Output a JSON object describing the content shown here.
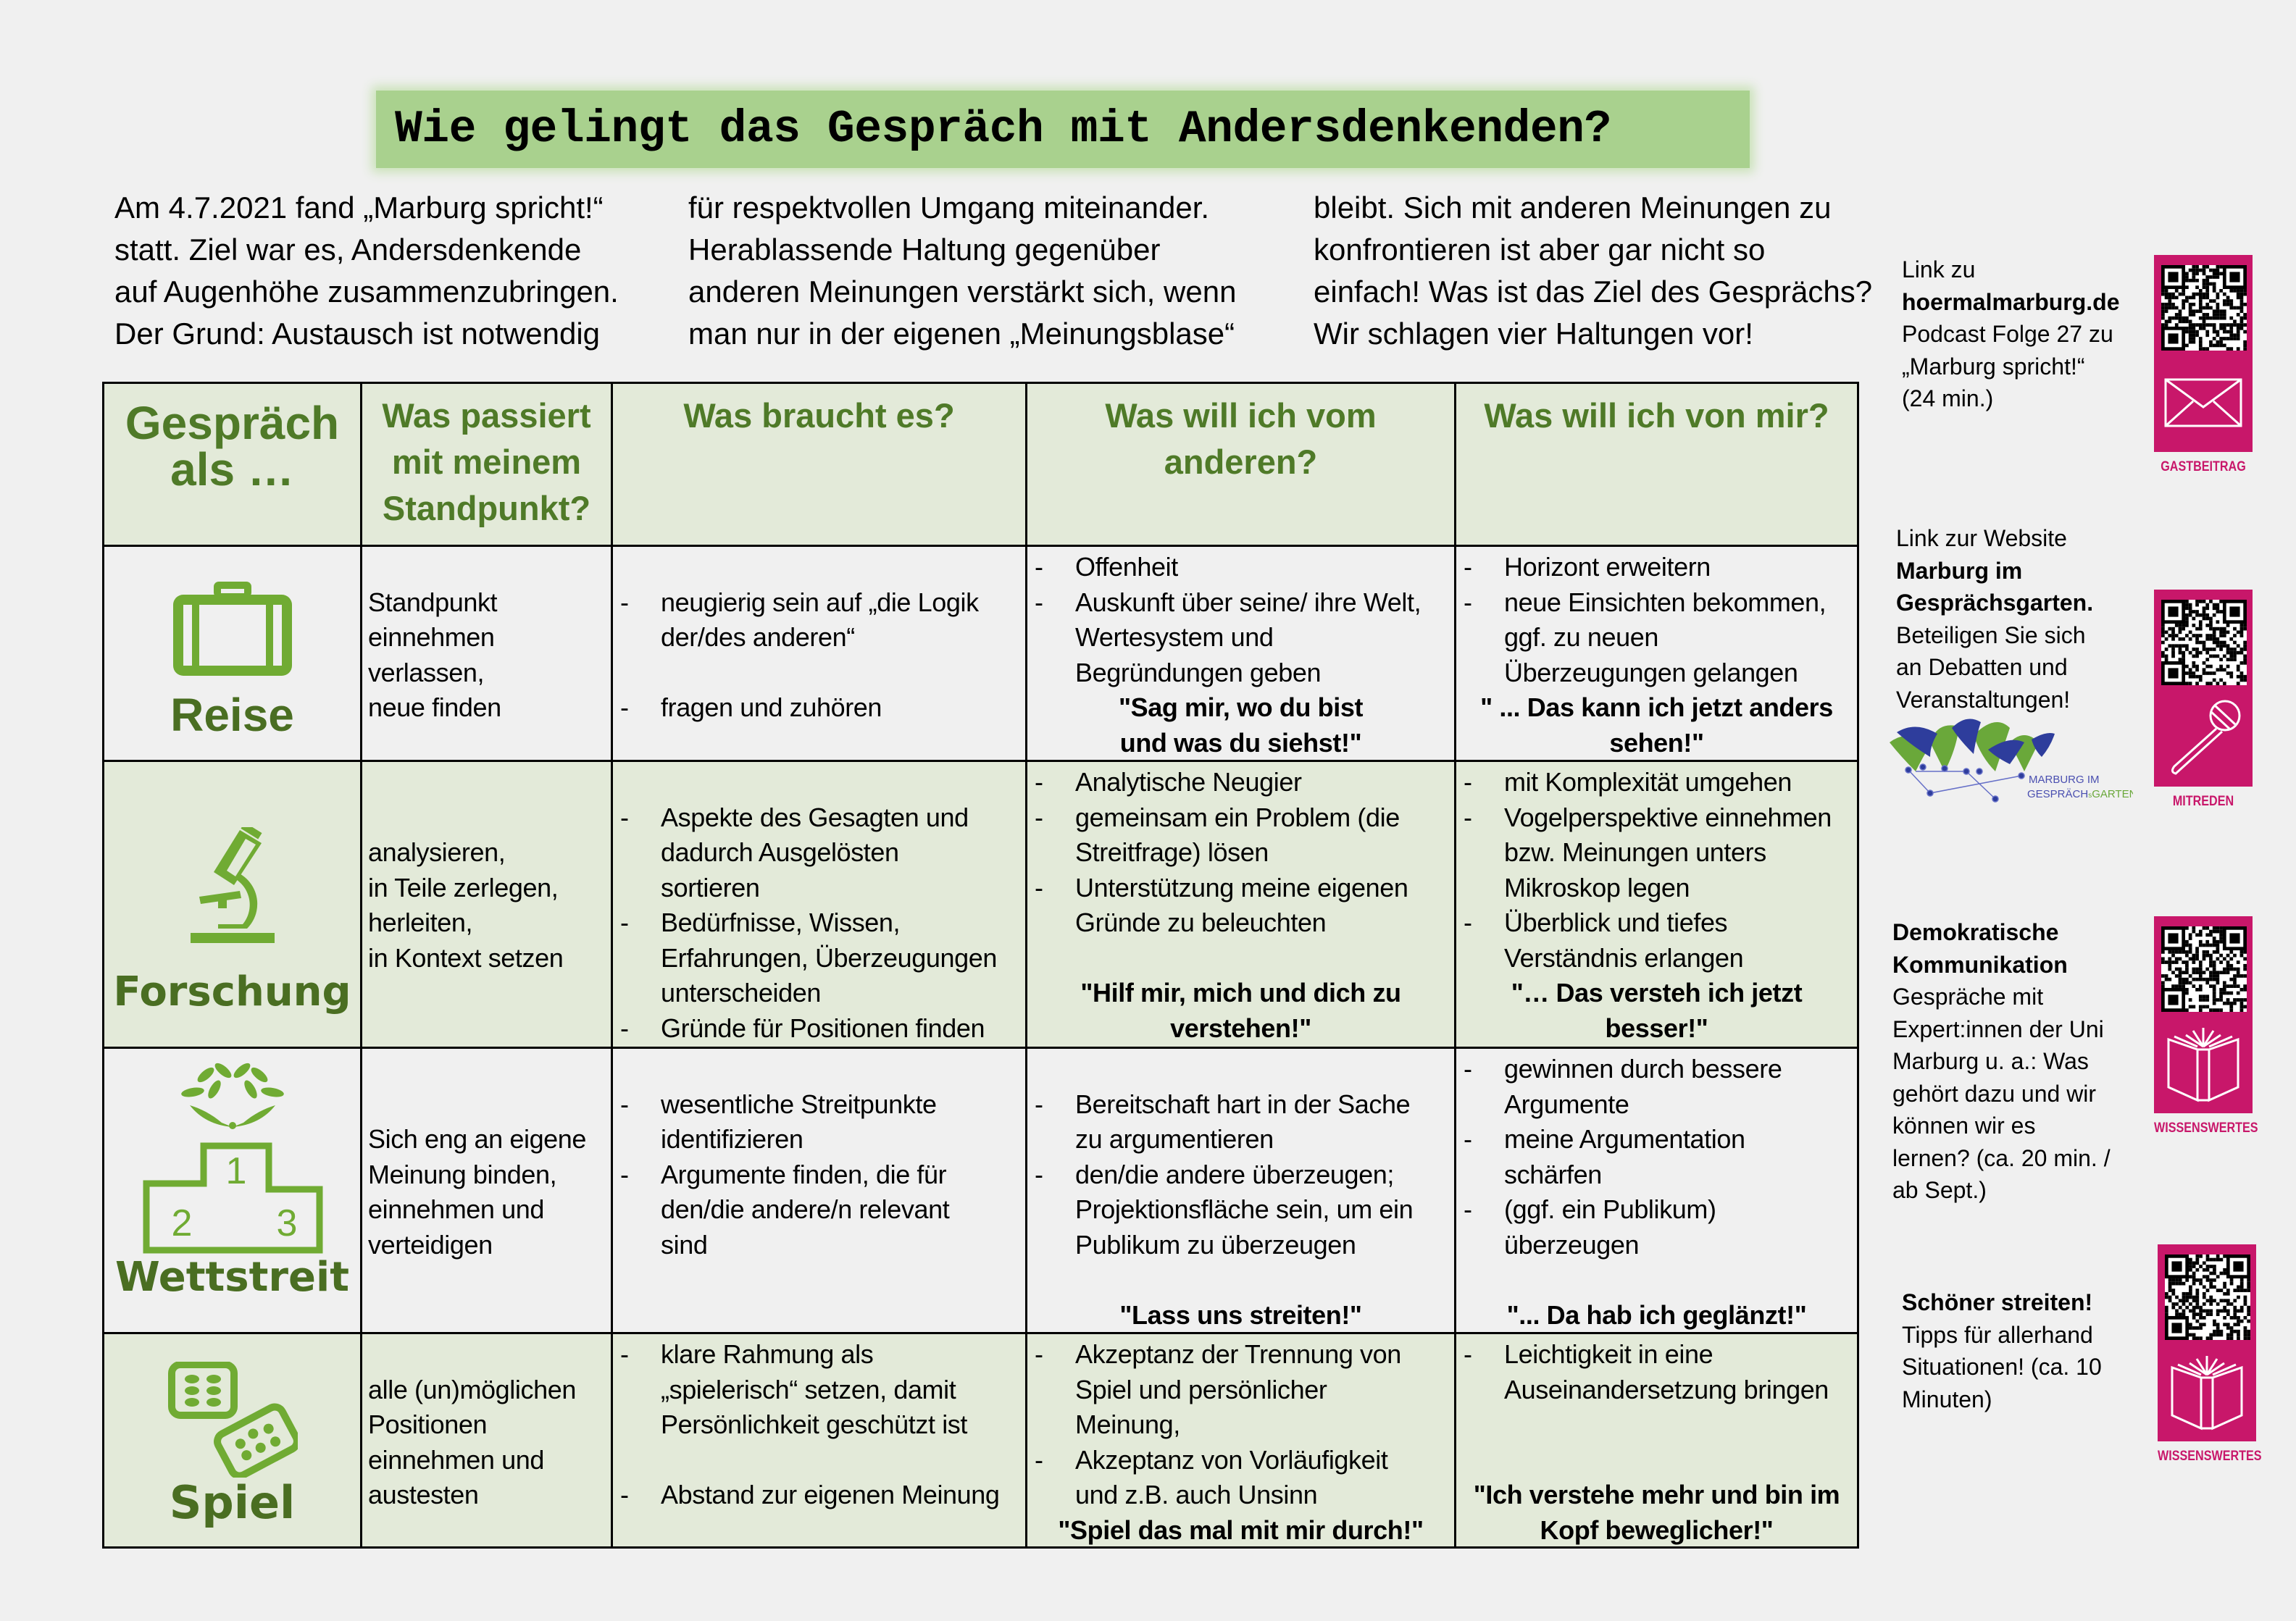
{
  "title": "Wie gelingt das Gespräch mit Andersdenkenden?",
  "intro": {
    "columns": [
      [
        "Am 4.7.2021 fand „Marburg spricht!“",
        "statt. Ziel war es, Andersdenkende",
        "auf Augenhöhe zusammenzubringen.",
        "Der Grund: Austausch ist notwendig"
      ],
      [
        "für  respektvollen Umgang miteinander.",
        "Herablassende Haltung gegenüber",
        "anderen Meinungen verstärkt sich, wenn",
        "man nur in der eigenen „Meinungsblase“"
      ],
      [
        "bleibt. Sich mit anderen Meinungen zu",
        "konfrontieren ist aber gar nicht so",
        "einfach! Was ist das Ziel des Gesprächs?",
        "Wir schlagen vier Haltungen vor!"
      ]
    ]
  },
  "table": {
    "headers": [
      [
        "Gespräch",
        "als …"
      ],
      [
        "Was passiert",
        "mit meinem",
        "Standpunkt?"
      ],
      [
        "Was braucht es?"
      ],
      [
        "Was will ich vom",
        "anderen?"
      ],
      [
        "Was will ich von mir?"
      ]
    ],
    "rows": [
      {
        "label": "Reise",
        "icon": "suitcase-icon",
        "cells": [
          [
            {
              "k": "",
              "t": ""
            },
            {
              "k": "p",
              "t": "Standpunkt"
            },
            {
              "k": "p",
              "t": "einnehmen"
            },
            {
              "k": "p",
              "t": "verlassen,"
            },
            {
              "k": "p",
              "t": "neue finden"
            }
          ],
          [
            {
              "k": "",
              "t": ""
            },
            {
              "k": "d",
              "t": "neugierig sein auf „die Logik"
            },
            {
              "k": "i",
              "t": "der/des anderen“"
            },
            {
              "k": "",
              "t": ""
            },
            {
              "k": "d",
              "t": "fragen und zuhören"
            }
          ],
          [
            {
              "k": "d",
              "t": "Offenheit"
            },
            {
              "k": "d",
              "t": "Auskunft über seine/ ihre Welt,"
            },
            {
              "k": "i",
              "t": "Wertesystem und"
            },
            {
              "k": "i",
              "t": "Begründungen geben"
            },
            {
              "k": "b",
              "t": "\"Sag mir, wo du bist"
            },
            {
              "k": "b",
              "t": "und was du siehst!\""
            }
          ],
          [
            {
              "k": "d",
              "t": "Horizont erweitern"
            },
            {
              "k": "d",
              "t": "neue Einsichten bekommen,"
            },
            {
              "k": "i",
              "t": "ggf. zu neuen"
            },
            {
              "k": "i",
              "t": "Überzeugungen gelangen"
            },
            {
              "k": "b",
              "t": "\" ... Das kann ich jetzt anders"
            },
            {
              "k": "b",
              "t": "sehen!\""
            }
          ]
        ]
      },
      {
        "label": "Forschung",
        "icon": "microscope-icon",
        "cells": [
          [
            {
              "k": "",
              "t": ""
            },
            {
              "k": "",
              "t": ""
            },
            {
              "k": "p",
              "t": "analysieren,"
            },
            {
              "k": "p",
              "t": "in Teile zerlegen,"
            },
            {
              "k": "p",
              "t": "herleiten,"
            },
            {
              "k": "p",
              "t": "in Kontext setzen"
            }
          ],
          [
            {
              "k": "",
              "t": ""
            },
            {
              "k": "d",
              "t": "Aspekte des Gesagten und"
            },
            {
              "k": "i",
              "t": "dadurch Ausgelösten"
            },
            {
              "k": "i",
              "t": "sortieren"
            },
            {
              "k": "d",
              "t": "Bedürfnisse, Wissen,"
            },
            {
              "k": "i",
              "t": "Erfahrungen, Überzeugungen"
            },
            {
              "k": "i",
              "t": "unterscheiden"
            },
            {
              "k": "d",
              "t": "Gründe für Positionen finden"
            }
          ],
          [
            {
              "k": "d",
              "t": "Analytische Neugier"
            },
            {
              "k": "d",
              "t": "gemeinsam ein Problem (die"
            },
            {
              "k": "i",
              "t": "Streitfrage) lösen"
            },
            {
              "k": "d",
              "t": "Unterstützung meine eigenen"
            },
            {
              "k": "i",
              "t": "Gründe zu beleuchten"
            },
            {
              "k": "",
              "t": ""
            },
            {
              "k": "b",
              "t": "\"Hilf mir, mich und dich zu"
            },
            {
              "k": "b",
              "t": "verstehen!\""
            }
          ],
          [
            {
              "k": "d",
              "t": "mit Komplexität umgehen"
            },
            {
              "k": "d",
              "t": "Vogelperspektive einnehmen"
            },
            {
              "k": "i",
              "t": "bzw. Meinungen unters"
            },
            {
              "k": "i",
              "t": "Mikroskop legen"
            },
            {
              "k": "d",
              "t": "Überblick und tiefes"
            },
            {
              "k": "i",
              "t": "Verständnis erlangen"
            },
            {
              "k": "b",
              "t": "\"… Das versteh ich jetzt"
            },
            {
              "k": "b",
              "t": "besser!\""
            }
          ]
        ]
      },
      {
        "label": "Wettstreit",
        "icon": "podium-icon",
        "icon_digits": [
          "1",
          "2",
          "3"
        ],
        "cells": [
          [
            {
              "k": "",
              "t": ""
            },
            {
              "k": "",
              "t": ""
            },
            {
              "k": "p",
              "t": "Sich eng an eigene"
            },
            {
              "k": "p",
              "t": "Meinung binden,"
            },
            {
              "k": "p",
              "t": "einnehmen und"
            },
            {
              "k": "p",
              "t": "verteidigen"
            }
          ],
          [
            {
              "k": "",
              "t": ""
            },
            {
              "k": "d",
              "t": "wesentliche Streitpunkte"
            },
            {
              "k": "i",
              "t": "identifizieren"
            },
            {
              "k": "d",
              "t": "Argumente finden, die für"
            },
            {
              "k": "i",
              "t": "den/die andere/n relevant"
            },
            {
              "k": "i",
              "t": "sind"
            }
          ],
          [
            {
              "k": "",
              "t": ""
            },
            {
              "k": "d",
              "t": "Bereitschaft hart in der Sache"
            },
            {
              "k": "i",
              "t": "zu argumentieren"
            },
            {
              "k": "d",
              "t": " den/die andere überzeugen;"
            },
            {
              "k": "i",
              "t": "Projektionsfläche sein, um ein"
            },
            {
              "k": "i",
              "t": "Publikum zu überzeugen"
            },
            {
              "k": "",
              "t": ""
            },
            {
              "k": "b",
              "t": "\"Lass uns streiten!\""
            }
          ],
          [
            {
              "k": "d",
              "t": "gewinnen durch bessere"
            },
            {
              "k": "i",
              "t": "Argumente"
            },
            {
              "k": "d",
              "t": "meine Argumentation"
            },
            {
              "k": "i",
              "t": "schärfen"
            },
            {
              "k": "d",
              "t": "(ggf. ein Publikum)"
            },
            {
              "k": "i",
              "t": "überzeugen"
            },
            {
              "k": "",
              "t": ""
            },
            {
              "k": "b",
              "t": "\"... Da hab ich geglänzt!\""
            }
          ]
        ]
      },
      {
        "label": "Spiel",
        "icon": "dice-icon",
        "cells": [
          [
            {
              "k": "",
              "t": ""
            },
            {
              "k": "p",
              "t": "alle (un)möglichen"
            },
            {
              "k": "p",
              "t": "Positionen"
            },
            {
              "k": "p",
              "t": "einnehmen und"
            },
            {
              "k": "p",
              "t": "austesten"
            }
          ],
          [
            {
              "k": "d",
              "t": "klare Rahmung als"
            },
            {
              "k": "i",
              "t": "„spielerisch“ setzen, damit"
            },
            {
              "k": "i",
              "t": "Persönlichkeit geschützt ist"
            },
            {
              "k": "",
              "t": ""
            },
            {
              "k": "d",
              "t": "Abstand zur eigenen Meinung"
            }
          ],
          [
            {
              "k": "d",
              "t": "Akzeptanz der Trennung von"
            },
            {
              "k": "i",
              "t": "Spiel und persönlicher"
            },
            {
              "k": "i",
              "t": "Meinung,"
            },
            {
              "k": "d",
              "t": "Akzeptanz von Vorläufigkeit"
            },
            {
              "k": "i",
              "t": "und z.B. auch Unsinn"
            },
            {
              "k": "b",
              "t": "\"Spiel das mal mit mir durch!\""
            }
          ],
          [
            {
              "k": "d",
              "t": "Leichtigkeit in eine"
            },
            {
              "k": "i",
              "t": "Auseinandersetzung bringen"
            },
            {
              "k": "",
              "t": ""
            },
            {
              "k": "",
              "t": ""
            },
            {
              "k": "b",
              "t": "\"Ich verstehe mehr und bin im"
            },
            {
              "k": "b",
              "t": "Kopf beweglicher!\""
            }
          ]
        ]
      }
    ]
  },
  "sidebar": [
    {
      "lines": [
        {
          "t": "Link zu"
        },
        {
          "t": "hoermalmarburg.de",
          "b": true
        },
        {
          "t": "Podcast Folge 27 zu"
        },
        {
          "t": "„Marburg spricht!“"
        },
        {
          "t": "(24 min.)"
        }
      ],
      "card_label": "GASTBEITRAG",
      "card_icon": "envelope-icon"
    },
    {
      "lines": [
        {
          "t": "Link zur Website"
        },
        {
          "t": "Marburg im",
          "b": true
        },
        {
          "t": "Gesprächsgarten.",
          "b": true
        },
        {
          "t": "Beteiligen Sie sich"
        },
        {
          "t": "an Debatten und"
        },
        {
          "t": "Veranstaltungen!"
        }
      ],
      "card_label": "MITREDEN",
      "card_icon": "microphone-icon"
    },
    {
      "lines": [
        {
          "t": "Demokratische",
          "b": true
        },
        {
          "t": "Kommunikation",
          "b": true
        },
        {
          "t": "Gespräche mit"
        },
        {
          "t": "Expert:innen der Uni"
        },
        {
          "t": "Marburg u. a.: Was"
        },
        {
          "t": "gehört dazu und wir"
        },
        {
          "t": "können wir es"
        },
        {
          "t": "lernen? (ca. 20 min. /"
        },
        {
          "t": "ab Sept.)"
        }
      ],
      "card_label": "WISSENSWERTES",
      "card_icon": "book-icon"
    },
    {
      "lines": [
        {
          "t": "Schöner streiten!",
          "b": true
        },
        {
          "t": "Tipps für allerhand"
        },
        {
          "t": "Situationen! (ca. 10"
        },
        {
          "t": "Minuten)"
        }
      ],
      "card_label": "WISSENSWERTES",
      "card_icon": "book-icon"
    }
  ],
  "logo": {
    "line1": "MARBURG IM",
    "line2_a": "GESPRÄCH",
    "line2_b": "s",
    "line2_c": "GARTEN"
  },
  "colors": {
    "title_bg": "#a9d18e",
    "icon_green": "#70ab33",
    "label_green": "#4a6e22",
    "header_green": "#4f7a28",
    "row_tint": "#e3ead9",
    "card_pink": "#c8176a",
    "logo_blue": "#2e3d9c"
  }
}
